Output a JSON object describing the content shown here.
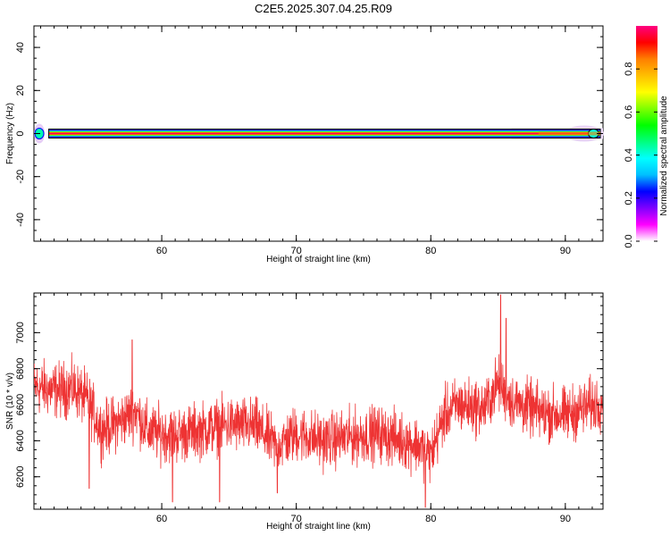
{
  "figure_title": "C2E5.2025.307.04.25.R09",
  "chart_data": [
    {
      "type": "heatmap",
      "xlabel": "Height of straight line (km)",
      "ylabel": "Frequency (Hz)",
      "xlim": [
        50.5,
        92.8
      ],
      "ylim": [
        -50,
        50
      ],
      "x_ticks": [
        60,
        70,
        80,
        90
      ],
      "y_ticks": [
        -40,
        -20,
        0,
        20,
        40
      ],
      "x_tick_labels": [
        "60",
        "70",
        "80",
        "90"
      ],
      "y_tick_labels": [
        "-40",
        "-20",
        "0",
        "20",
        "40"
      ],
      "band": {
        "center_hz": 0,
        "core_half_width_hz": 1.5,
        "amplitude_peak": 1.0
      },
      "grid": false
    },
    {
      "type": "colorbar",
      "label": "Normalized spectral amplitude",
      "range": [
        0,
        1
      ],
      "ticks": [
        0.0,
        0.2,
        0.4,
        0.6,
        0.8
      ],
      "tick_labels": [
        "0.0",
        "0.2",
        "0.4",
        "0.6",
        "0.8"
      ],
      "colormap": [
        "#ffffff",
        "#ff00ff",
        "#7f00ff",
        "#0000ff",
        "#00bfff",
        "#00ffff",
        "#00ff7f",
        "#00ff00",
        "#7fff00",
        "#ffff00",
        "#ffbf00",
        "#ff7f00",
        "#ff0000",
        "#ff0080"
      ]
    },
    {
      "type": "line",
      "xlabel": "Height of straight line (km)",
      "ylabel": "SNR (10 * v/v)",
      "xlim": [
        50.5,
        92.8
      ],
      "ylim": [
        6020,
        7220
      ],
      "x_ticks": [
        60,
        70,
        80,
        90
      ],
      "y_ticks": [
        6200,
        6400,
        6600,
        6800,
        7000
      ],
      "x_tick_labels": [
        "60",
        "70",
        "80",
        "90"
      ],
      "y_tick_labels": [
        "6200",
        "6400",
        "6600",
        "6800",
        "7000"
      ],
      "series": [
        {
          "color": "#ee3333",
          "trend": {
            "x": [
              50.5,
              52,
              53.5,
              54.5,
              55.5,
              57,
              58,
              59,
              61,
              63,
              65,
              67,
              68.5,
              70,
              72,
              74,
              76,
              78,
              79,
              80,
              81,
              82,
              84,
              85,
              86,
              88,
              90,
              92.8
            ],
            "y": [
              6700,
              6680,
              6690,
              6620,
              6460,
              6510,
              6570,
              6450,
              6430,
              6460,
              6490,
              6480,
              6370,
              6440,
              6400,
              6420,
              6440,
              6400,
              6380,
              6320,
              6540,
              6600,
              6580,
              6720,
              6620,
              6560,
              6540,
              6620
            ]
          },
          "noise_amplitude": 130,
          "spikes": [
            {
              "x": 54.6,
              "y": 6135
            },
            {
              "x": 57.8,
              "y": 6960
            },
            {
              "x": 60.8,
              "y": 6060
            },
            {
              "x": 64.3,
              "y": 6060
            },
            {
              "x": 68.6,
              "y": 6110
            },
            {
              "x": 79.6,
              "y": 6030
            },
            {
              "x": 85.2,
              "y": 7210
            },
            {
              "x": 85.6,
              "y": 7080
            }
          ]
        }
      ],
      "grid": false
    }
  ]
}
